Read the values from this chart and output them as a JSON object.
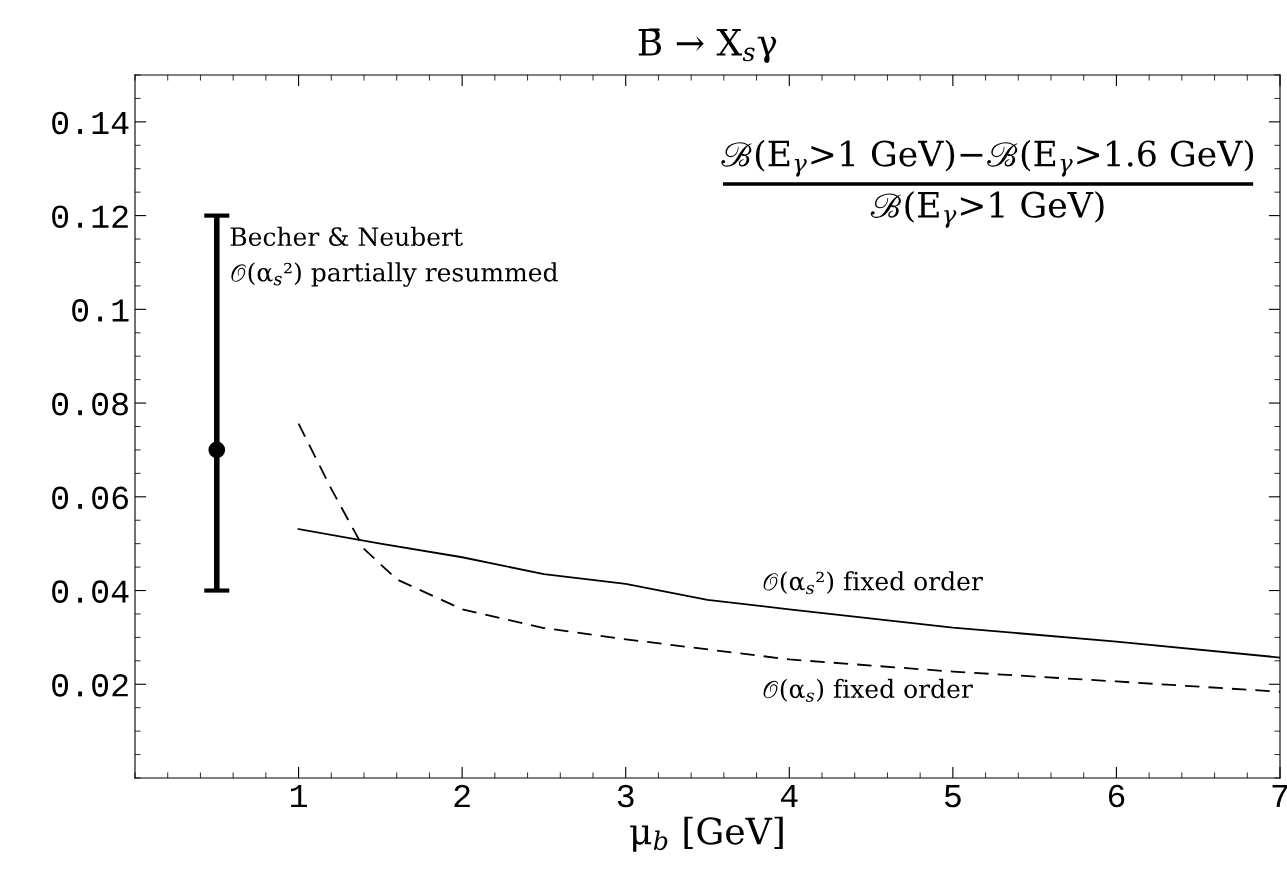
{
  "chart_data": {
    "type": "line",
    "title": "B̄ → X$_{s}$γ",
    "xlabel": "μ$_{b}$ [GeV]",
    "annotations": [
      "ℬ(E$_{γ}$>1 GeV)−ℬ(E$_{γ}$>1.6 GeV)",
      "ℬ(E$_{γ}$>1 GeV)",
      {
        "text": "Becher & Neubert\n𝒪(α$_{s}$²) partially resummed",
        "x": 0.5,
        "y": 0.12
      }
    ],
    "xlim": [
      0,
      7
    ],
    "ylim": [
      0,
      0.15
    ],
    "xticks": [
      1,
      2,
      3,
      4,
      5,
      6,
      7
    ],
    "yticks": [
      0.02,
      0.04,
      0.06,
      0.08,
      0.1,
      0.12,
      0.14
    ],
    "grid": false,
    "legend": false,
    "series": [
      {
        "type": "scatter",
        "color": "#000000",
        "marker": "circle",
        "x": [
          0.5
        ],
        "values": [
          0.07
        ],
        "errors": [
          [
            0.04,
            0.12
          ]
        ]
      },
      {
        "name": "𝒪(α$_{s}$²) fixed order",
        "color": "#000000",
        "line_style": "solid",
        "x": [
          1,
          1.5,
          2,
          2.5,
          3,
          3.5,
          4,
          5,
          6,
          7
        ],
        "values": [
          0.0531,
          0.05,
          0.0471,
          0.0435,
          0.0414,
          0.038,
          0.036,
          0.0321,
          0.0291,
          0.0257
        ]
      },
      {
        "name": "𝒪(α$_{s}$) fixed order",
        "color": "#000000",
        "line_style": "dashed",
        "x": [
          1,
          1.2,
          1.4,
          1.6,
          2,
          2.5,
          3,
          4,
          5,
          6,
          7
        ],
        "values": [
          0.0756,
          0.0617,
          0.0489,
          0.0424,
          0.036,
          0.032,
          0.0296,
          0.0253,
          0.0227,
          0.0206,
          0.0184
        ]
      }
    ]
  }
}
